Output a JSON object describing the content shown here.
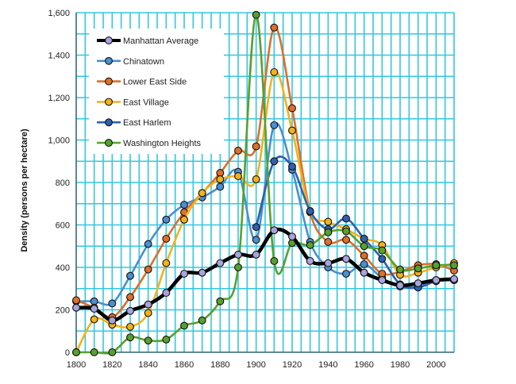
{
  "chart_data": {
    "type": "line",
    "title": "",
    "xlabel": "",
    "ylabel": "Density (persons per hectare)",
    "xlim": [
      1800,
      2010
    ],
    "ylim": [
      0,
      1600
    ],
    "x_ticks": [
      1800,
      1820,
      1840,
      1860,
      1880,
      1900,
      1920,
      1940,
      1960,
      1980,
      2000
    ],
    "x_tick_labels": [
      "1800",
      "1820",
      "1840",
      "1860",
      "1880",
      "1900",
      "1920",
      "1940",
      "1960",
      "1980",
      "2000"
    ],
    "y_ticks": [
      0,
      200,
      400,
      600,
      800,
      1000,
      1200,
      1400,
      1600
    ],
    "y_tick_labels": [
      "0",
      "200",
      "400",
      "600",
      "800",
      "1,000",
      "1,200",
      "1,400",
      "1,600"
    ],
    "grid": true,
    "grid_color": "#33c7e0",
    "legend_position": "top-left",
    "series": [
      {
        "name": "Manhattan Average",
        "color": "#000000",
        "marker_color": "#a7a4dd",
        "x": [
          1800,
          1810,
          1820,
          1830,
          1840,
          1850,
          1860,
          1870,
          1880,
          1890,
          1900,
          1910,
          1920,
          1930,
          1940,
          1950,
          1960,
          1970,
          1980,
          1990,
          2000,
          2010
        ],
        "values": [
          210,
          205,
          150,
          195,
          225,
          280,
          370,
          375,
          420,
          460,
          460,
          575,
          545,
          430,
          420,
          440,
          375,
          340,
          315,
          325,
          340,
          345
        ]
      },
      {
        "name": "Chinatown",
        "color": "#4a8fcf",
        "marker_color": "#4a8fcf",
        "x": [
          1800,
          1810,
          1820,
          1830,
          1840,
          1850,
          1860,
          1870,
          1880,
          1890,
          1900,
          1910,
          1920,
          1930,
          1940,
          1950,
          1960,
          1970,
          1980,
          1990,
          2000,
          2010
        ],
        "values": [
          240,
          240,
          230,
          360,
          510,
          625,
          695,
          730,
          780,
          850,
          530,
          1070,
          860,
          520,
          400,
          370,
          415,
          350,
          310,
          310,
          340,
          340
        ]
      },
      {
        "name": "Lower East Side",
        "color": "#dd6f28",
        "marker_color": "#dd6f28",
        "x": [
          1800,
          1810,
          1820,
          1830,
          1840,
          1850,
          1860,
          1870,
          1880,
          1890,
          1900,
          1910,
          1920,
          1930,
          1940,
          1950,
          1960,
          1970,
          1980,
          1990,
          2000,
          2010
        ],
        "values": [
          245,
          210,
          165,
          260,
          390,
          535,
          660,
          750,
          845,
          950,
          970,
          1530,
          1150,
          660,
          520,
          530,
          455,
          370,
          380,
          410,
          415,
          385
        ]
      },
      {
        "name": "East Village",
        "color": "#f2b21b",
        "marker_color": "#f2b21b",
        "x": [
          1800,
          1810,
          1820,
          1830,
          1840,
          1850,
          1860,
          1870,
          1880,
          1890,
          1900,
          1910,
          1920,
          1930,
          1940,
          1950,
          1960,
          1970,
          1980,
          1990,
          2000,
          2010
        ],
        "values": [
          0,
          155,
          130,
          120,
          185,
          420,
          625,
          750,
          815,
          830,
          815,
          1320,
          1045,
          665,
          615,
          580,
          535,
          505,
          365,
          375,
          400,
          420
        ]
      },
      {
        "name": "East Harlem",
        "color": "#2e60b0",
        "marker_color": "#2e60b0",
        "x": [
          1900,
          1910,
          1920,
          1930,
          1940,
          1950,
          1960,
          1970,
          1980,
          1990,
          2000,
          2010
        ],
        "values": [
          590,
          900,
          875,
          665,
          580,
          630,
          535,
          440,
          320,
          305,
          335,
          340
        ]
      },
      {
        "name": "Washington Heights",
        "color": "#56a12e",
        "marker_color": "#56a12e",
        "x": [
          1800,
          1810,
          1820,
          1830,
          1840,
          1850,
          1860,
          1870,
          1880,
          1890,
          1900,
          1910,
          1920,
          1930,
          1940,
          1950,
          1960,
          1970,
          1980,
          1990,
          2000,
          2010
        ],
        "values": [
          0,
          0,
          0,
          70,
          55,
          60,
          125,
          150,
          240,
          400,
          1590,
          430,
          515,
          505,
          565,
          570,
          500,
          480,
          390,
          395,
          410,
          410
        ]
      }
    ]
  }
}
